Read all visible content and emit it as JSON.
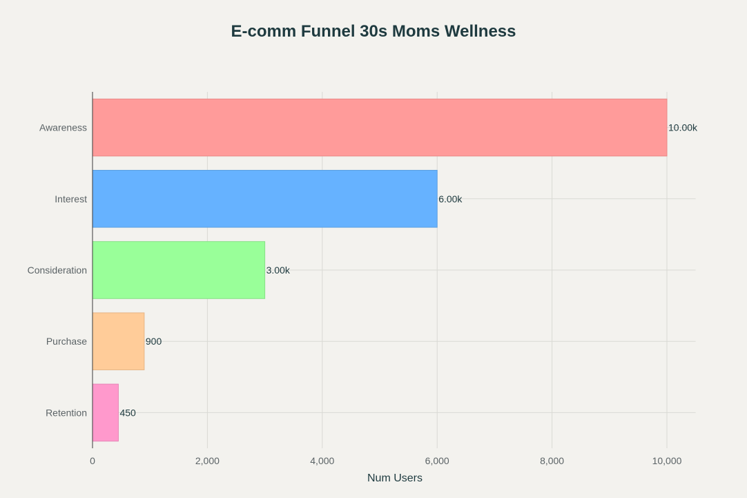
{
  "chart_data": {
    "type": "bar",
    "orientation": "horizontal",
    "title": "E-comm Funnel 30s Moms Wellness",
    "xlabel": "Num Users",
    "ylabel": "",
    "categories": [
      "Awareness",
      "Interest",
      "Consideration",
      "Purchase",
      "Retention"
    ],
    "values": [
      10000,
      6000,
      3000,
      900,
      450
    ],
    "data_labels": [
      "10.00k",
      "6.00k",
      "3.00k",
      "900",
      "450"
    ],
    "colors": [
      "#ff9b9a",
      "#66b2ff",
      "#99ff99",
      "#ffcc99",
      "#ff99cc"
    ],
    "bar_edge_colors": [
      "#e88886",
      "#5a9fe0",
      "#86e086",
      "#e6b586",
      "#e686b7"
    ],
    "xlim": [
      0,
      10500
    ],
    "xticks": [
      0,
      2000,
      4000,
      6000,
      8000,
      10000
    ],
    "xtick_labels": [
      "0",
      "2,000",
      "4,000",
      "6,000",
      "8,000",
      "10,000"
    ],
    "grid": true,
    "legend": "none"
  }
}
